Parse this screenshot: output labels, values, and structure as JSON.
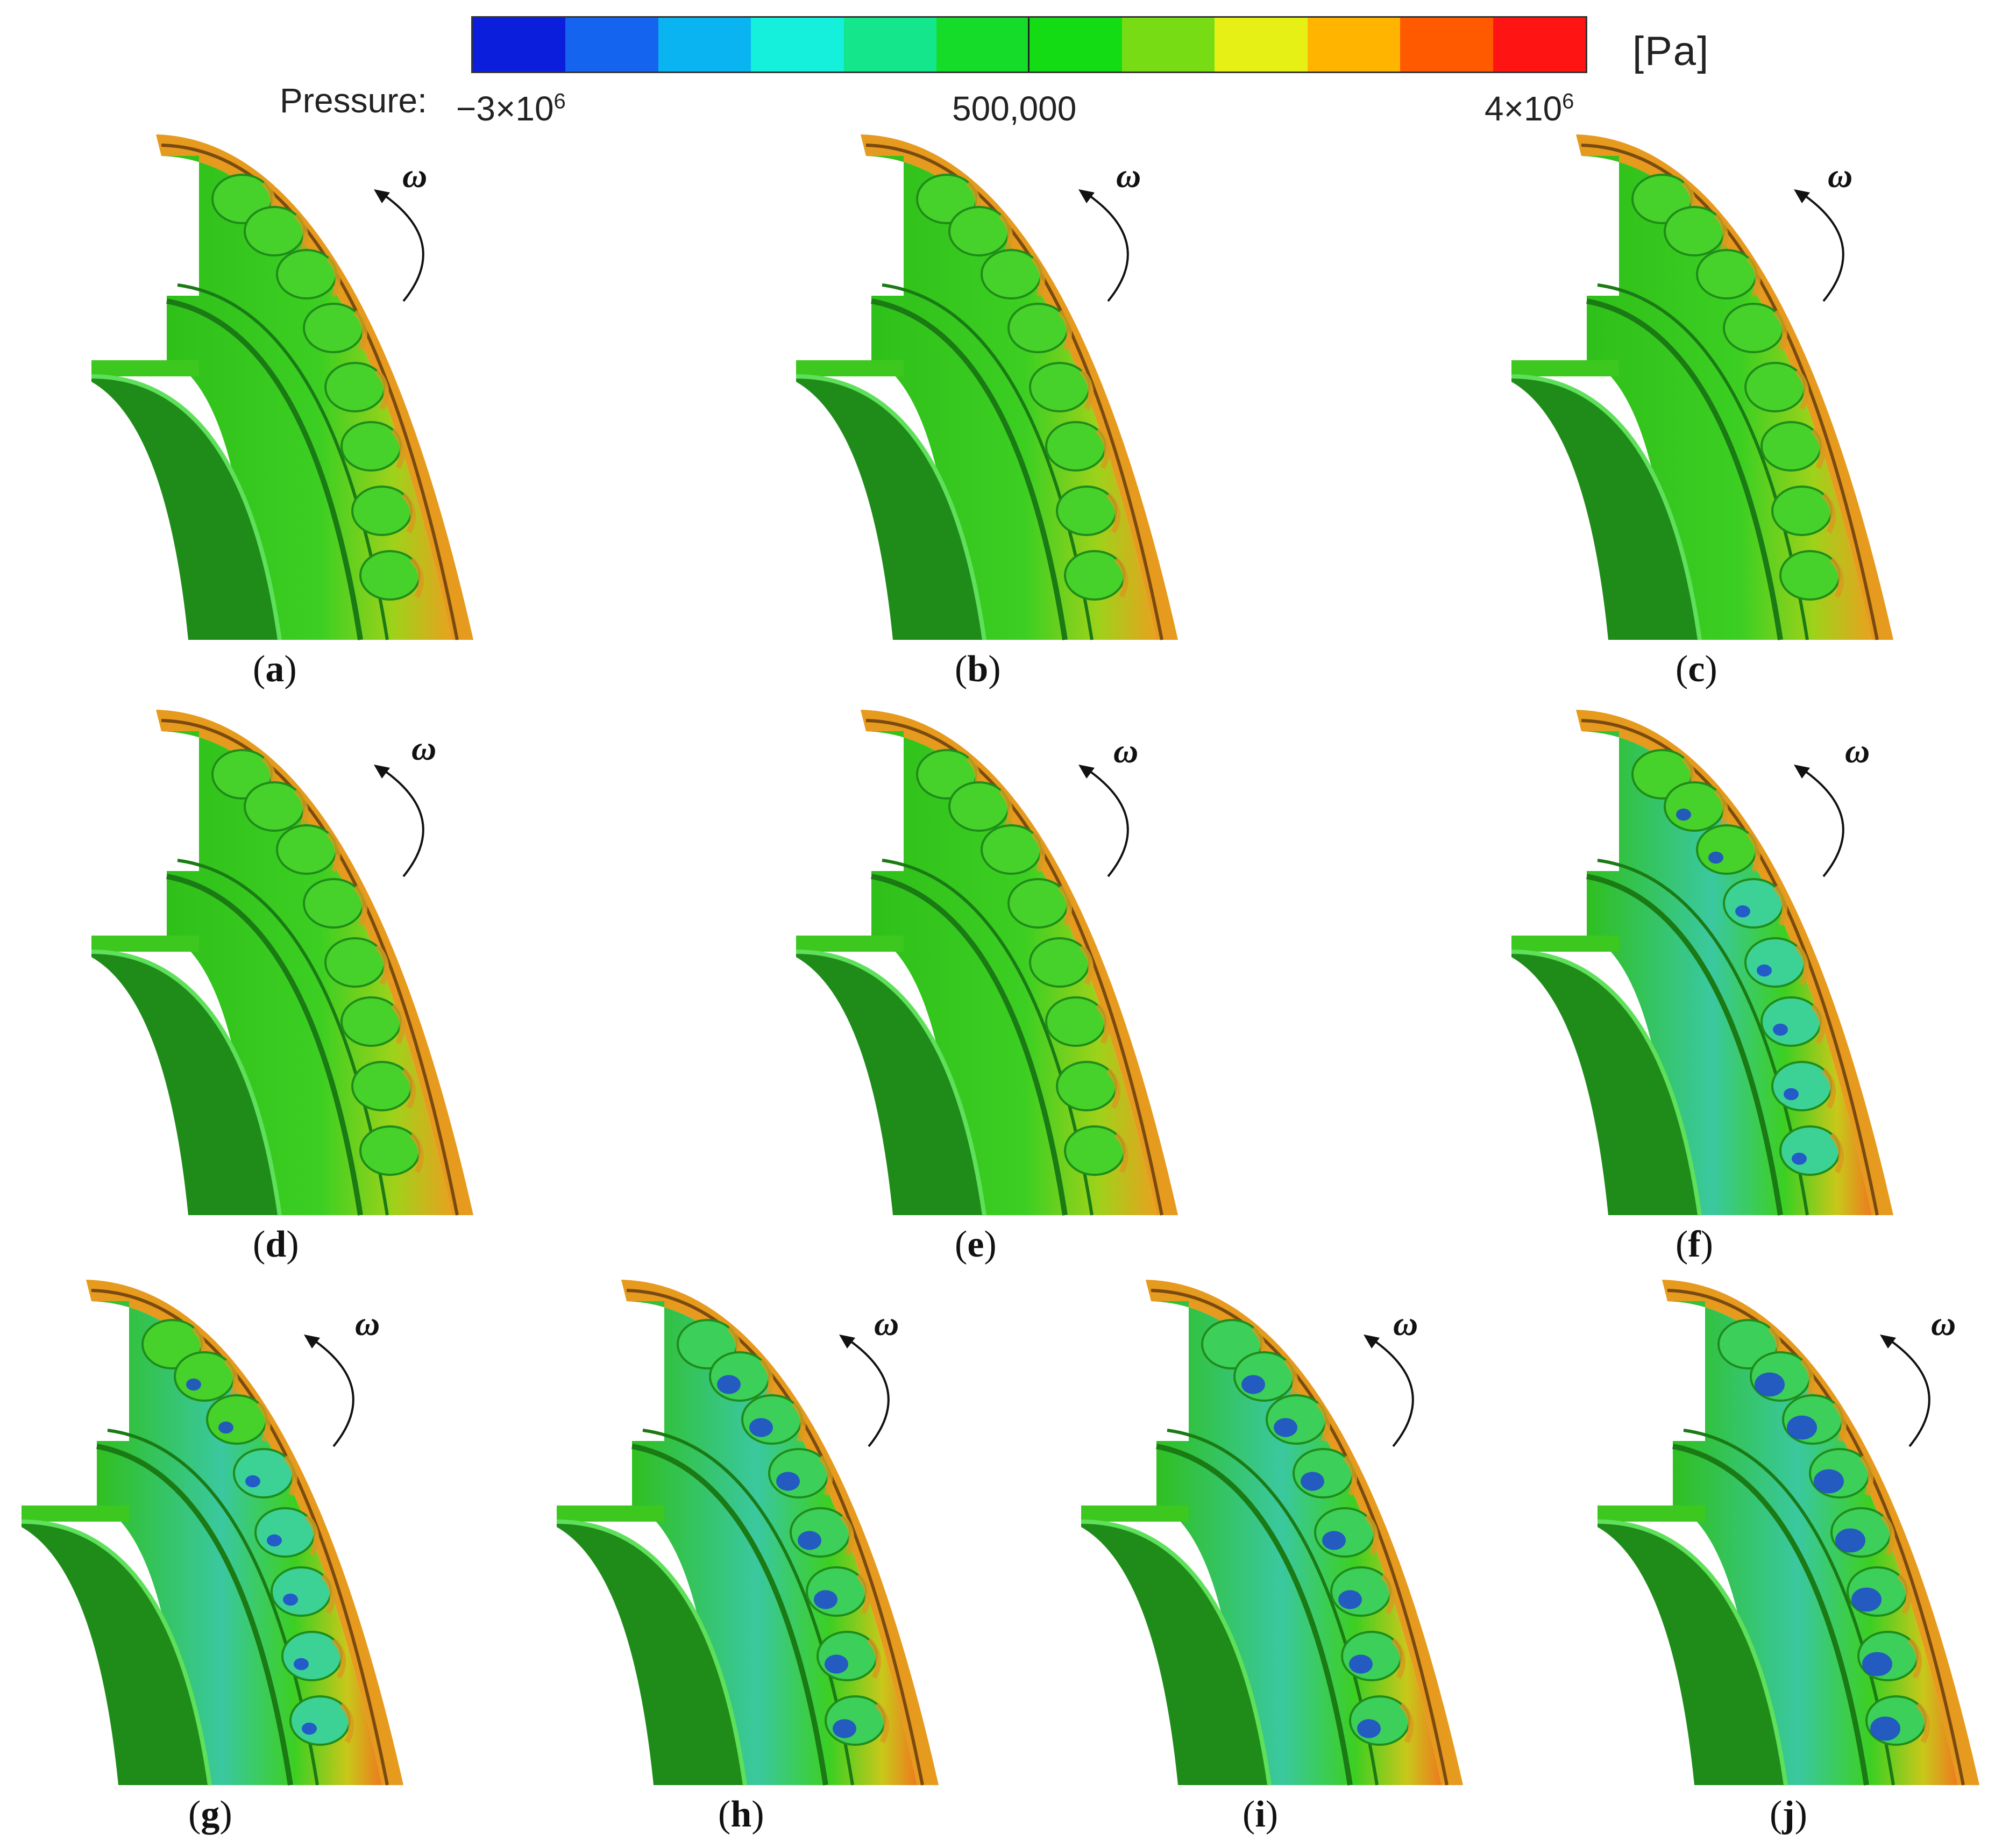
{
  "legend": {
    "label": "Pressure:",
    "unit": "[Pa]",
    "tick_min_base": "−3×10",
    "tick_min_exp": "6",
    "tick_mid": "500,000",
    "tick_max_base": "4×10",
    "tick_max_exp": "6",
    "colors": [
      "#0a1edc",
      "#1464f0",
      "#0ab4f0",
      "#14f0dc",
      "#14e68c",
      "#14dc28",
      "#14dc14",
      "#78dc14",
      "#e6f014",
      "#ffb400",
      "#ff5a00",
      "#ff1414"
    ]
  },
  "rotation_symbol": "ω",
  "panels": [
    {
      "label": "a",
      "mode": "high"
    },
    {
      "label": "b",
      "mode": "high"
    },
    {
      "label": "c",
      "mode": "high"
    },
    {
      "label": "d",
      "mode": "high"
    },
    {
      "label": "e",
      "mode": "high"
    },
    {
      "label": "f",
      "mode": "low1"
    },
    {
      "label": "g",
      "mode": "low1"
    },
    {
      "label": "h",
      "mode": "low2"
    },
    {
      "label": "i",
      "mode": "low2"
    },
    {
      "label": "j",
      "mode": "low3"
    }
  ],
  "palette": {
    "outer_rim": "#e69a1e",
    "casing_green": "#3cc81e",
    "dark_green": "#1f8c1a",
    "cyan": "#32d2aa",
    "blue": "#1e46d2"
  }
}
